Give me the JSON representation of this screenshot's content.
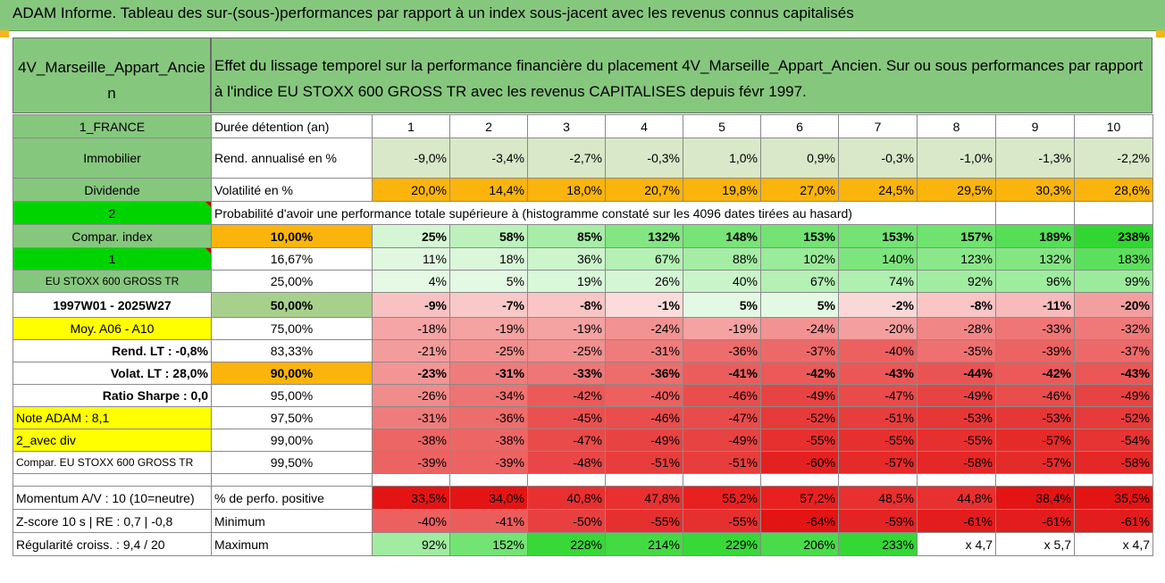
{
  "title": "ADAM Informe. Tableau des sur-(sous-)performances par rapport à un index sous-jacent avec les revenus connus capitalisés",
  "header": {
    "asset": "4V_Marseille_Appart_Ancien",
    "description": "Effet du lissage temporel sur la performance financière du placement 4V_Marseille_Appart_Ancien. Sur ou sous performances par rapport à l'indice EU STOXX 600 GROSS TR avec les revenus CAPITALISES depuis févr 1997."
  },
  "labels": {
    "country": "1_FRANCE",
    "category": "Immobilier",
    "dividend": "Dividende",
    "num_2": "2",
    "compar_index": "Compar. index",
    "num_1": "1",
    "index_name": "EU STOXX 600 GROSS TR",
    "period": "1997W01 - 2025W27",
    "moy": "Moy. A06 - A10",
    "rend_lt": "Rend. LT :   -0,8%",
    "volat_lt": "Volat. LT :   28,0%",
    "sharpe": "Ratio Sharpe :   0,0",
    "note": "Note ADAM : 8,1",
    "avec_div": "2_avec div",
    "compar_full": "Compar. EU STOXX 600 GROSS TR",
    "momentum": "Momentum A/V : 10 (10=neutre)",
    "zscore": "Z-score 10 s | RE : 0,7 | -0,8",
    "regularite": "Régularité croiss. : 9,4 / 20"
  },
  "rows": {
    "duree_label": "Durée détention (an)",
    "duree": [
      "1",
      "2",
      "3",
      "4",
      "5",
      "6",
      "7",
      "8",
      "9",
      "10"
    ],
    "rend_label": "Rend. annualisé en %",
    "rend": [
      "-9,0%",
      "-3,4%",
      "-2,7%",
      "-0,3%",
      "1,0%",
      "0,9%",
      "-0,3%",
      "-1,0%",
      "-1,3%",
      "-2,2%"
    ],
    "vol_label": "Volatilité en %",
    "vol": [
      "20,0%",
      "14,4%",
      "18,0%",
      "20,7%",
      "19,8%",
      "27,0%",
      "24,5%",
      "29,5%",
      "30,3%",
      "28,6%"
    ],
    "proba_label": "Probabilité d'avoir une performance totale supérieure à (histogramme constaté sur les 4096 dates tirées au hasard)",
    "pct_rows": [
      {
        "p": "10,00%",
        "v": [
          "25%",
          "58%",
          "85%",
          "132%",
          "148%",
          "153%",
          "153%",
          "157%",
          "189%",
          "238%"
        ]
      },
      {
        "p": "16,67%",
        "v": [
          "11%",
          "18%",
          "36%",
          "67%",
          "88%",
          "102%",
          "140%",
          "123%",
          "132%",
          "183%"
        ]
      },
      {
        "p": "25,00%",
        "v": [
          "4%",
          "5%",
          "19%",
          "26%",
          "40%",
          "67%",
          "74%",
          "92%",
          "96%",
          "99%"
        ]
      },
      {
        "p": "50,00%",
        "v": [
          "-9%",
          "-7%",
          "-8%",
          "-1%",
          "5%",
          "5%",
          "-2%",
          "-8%",
          "-11%",
          "-20%"
        ]
      },
      {
        "p": "75,00%",
        "v": [
          "-18%",
          "-19%",
          "-19%",
          "-24%",
          "-19%",
          "-24%",
          "-20%",
          "-28%",
          "-33%",
          "-32%"
        ]
      },
      {
        "p": "83,33%",
        "v": [
          "-21%",
          "-25%",
          "-25%",
          "-31%",
          "-36%",
          "-37%",
          "-40%",
          "-35%",
          "-39%",
          "-37%"
        ]
      },
      {
        "p": "90,00%",
        "v": [
          "-23%",
          "-31%",
          "-33%",
          "-36%",
          "-41%",
          "-42%",
          "-43%",
          "-44%",
          "-42%",
          "-43%"
        ]
      },
      {
        "p": "95,00%",
        "v": [
          "-26%",
          "-34%",
          "-42%",
          "-40%",
          "-46%",
          "-49%",
          "-47%",
          "-49%",
          "-46%",
          "-49%"
        ]
      },
      {
        "p": "97,50%",
        "v": [
          "-31%",
          "-36%",
          "-45%",
          "-46%",
          "-47%",
          "-52%",
          "-51%",
          "-53%",
          "-53%",
          "-52%"
        ]
      },
      {
        "p": "99,00%",
        "v": [
          "-38%",
          "-38%",
          "-47%",
          "-49%",
          "-49%",
          "-55%",
          "-55%",
          "-55%",
          "-57%",
          "-54%"
        ]
      },
      {
        "p": "99,50%",
        "v": [
          "-39%",
          "-39%",
          "-48%",
          "-51%",
          "-51%",
          "-60%",
          "-57%",
          "-58%",
          "-57%",
          "-58%"
        ]
      }
    ],
    "pos_label": "% de perfo. positive",
    "pos": [
      "33,5%",
      "34,0%",
      "40,8%",
      "47,8%",
      "55,2%",
      "57,2%",
      "48,5%",
      "44,8%",
      "38,4%",
      "35,5%"
    ],
    "min_label": "Minimum",
    "min": [
      "-40%",
      "-41%",
      "-50%",
      "-55%",
      "-55%",
      "-64%",
      "-59%",
      "-61%",
      "-61%",
      "-61%"
    ],
    "max_label": "Maximum",
    "max": [
      "92%",
      "152%",
      "228%",
      "214%",
      "229%",
      "206%",
      "233%",
      "x 4,7",
      "x 5,7",
      "x 4,7"
    ]
  }
}
